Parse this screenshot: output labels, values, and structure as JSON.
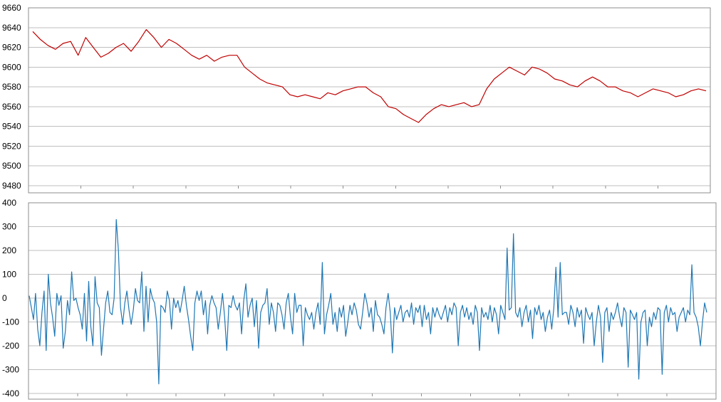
{
  "chart_data": [
    {
      "type": "line",
      "title": "",
      "xlabel": "",
      "ylabel": "",
      "ylim": [
        9480,
        9660
      ],
      "y_ticks": [
        "9660",
        "9640",
        "9620",
        "9600",
        "9580",
        "9560",
        "9540",
        "9520",
        "9500",
        "9480"
      ],
      "grid": true,
      "legend": "none",
      "series": [
        {
          "color": "#c00000",
          "values": [
            9636,
            9628,
            9622,
            9618,
            9624,
            9626,
            9612,
            9630,
            9620,
            9610,
            9614,
            9620,
            9624,
            9616,
            9626,
            9638,
            9630,
            9620,
            9628,
            9624,
            9618,
            9612,
            9608,
            9612,
            9606,
            9610,
            9612,
            9612,
            9600,
            9594,
            9588,
            9584,
            9582,
            9580,
            9572,
            9570,
            9572,
            9570,
            9568,
            9574,
            9572,
            9576,
            9578,
            9580,
            9580,
            9574,
            9570,
            9560,
            9558,
            9552,
            9548,
            9544,
            9552,
            9558,
            9562,
            9560,
            9562,
            9564,
            9560,
            9562,
            9578,
            9588,
            9594,
            9600,
            9596,
            9592,
            9600,
            9598,
            9594,
            9588,
            9586,
            9582,
            9580,
            9586,
            9590,
            9586,
            9580,
            9580,
            9576,
            9574,
            9570,
            9574,
            9578,
            9576,
            9574,
            9570,
            9572,
            9576,
            9578,
            9576
          ]
        }
      ]
    },
    {
      "type": "line",
      "title": "",
      "xlabel": "",
      "ylabel": "",
      "ylim": [
        -400,
        400
      ],
      "y_ticks": [
        "400",
        "300",
        "200",
        "100",
        "0",
        "-100",
        "-200",
        "-300",
        "-400"
      ],
      "grid": true,
      "legend": "none",
      "series": [
        {
          "color": "#1f77b4",
          "values": [
            10,
            -40,
            -90,
            20,
            -130,
            -200,
            -60,
            30,
            -220,
            100,
            -20,
            -80,
            -160,
            20,
            -30,
            10,
            -210,
            -140,
            -10,
            -70,
            110,
            -10,
            0,
            -40,
            -70,
            -130,
            20,
            -180,
            70,
            -120,
            -200,
            90,
            -20,
            -40,
            -240,
            -130,
            -20,
            30,
            -60,
            -70,
            0,
            330,
            200,
            -40,
            -110,
            -20,
            30,
            -50,
            -110,
            -50,
            40,
            -10,
            -20,
            110,
            -140,
            50,
            -100,
            40,
            0,
            -20,
            -100,
            -360,
            -30,
            -40,
            -60,
            30,
            -10,
            -130,
            0,
            -40,
            -10,
            -60,
            -10,
            50,
            -30,
            -90,
            -160,
            -220,
            -20,
            30,
            -10,
            30,
            -70,
            -10,
            -150,
            -30,
            10,
            -20,
            -40,
            -130,
            -60,
            20,
            -80,
            -220,
            -30,
            -40,
            10,
            -30,
            -50,
            -20,
            -150,
            -10,
            60,
            -80,
            -30,
            0,
            -120,
            -10,
            -210,
            -60,
            -30,
            -20,
            40,
            -110,
            -20,
            -60,
            -140,
            -20,
            -30,
            -70,
            -130,
            -20,
            20,
            -80,
            -150,
            20,
            -60,
            -30,
            -30,
            -200,
            -40,
            -70,
            -90,
            -60,
            -130,
            -60,
            -20,
            -110,
            150,
            -150,
            -70,
            -30,
            20,
            -110,
            -60,
            -140,
            -40,
            -80,
            -30,
            -160,
            -100,
            -30,
            -70,
            -20,
            -50,
            -110,
            -130,
            -60,
            20,
            -20,
            -80,
            -40,
            -140,
            -10,
            -70,
            -80,
            -110,
            -150,
            -40,
            20,
            -60,
            -230,
            -40,
            -90,
            -60,
            -30,
            -100,
            -60,
            -50,
            -80,
            -20,
            -110,
            -40,
            -60,
            -30,
            -120,
            -30,
            -90,
            -60,
            -150,
            -40,
            -80,
            -40,
            -70,
            -90,
            -60,
            -30,
            -100,
            -40,
            -70,
            -20,
            -40,
            -200,
            -60,
            -30,
            -80,
            -40,
            -90,
            -60,
            -110,
            -30,
            -60,
            -220,
            -40,
            -80,
            -60,
            -90,
            -30,
            -100,
            -40,
            -70,
            -150,
            -30,
            -60,
            -90,
            210,
            -50,
            -40,
            270,
            -60,
            -80,
            -40,
            -120,
            -60,
            -30,
            -100,
            -50,
            -170,
            -40,
            -70,
            -30,
            -90,
            -60,
            -140,
            -80,
            -50,
            -130,
            -40,
            130,
            -80,
            150,
            -70,
            -60,
            -60,
            -110,
            -30,
            -60,
            -120,
            -40,
            -80,
            -50,
            -190,
            -40,
            -70,
            -90,
            -60,
            -200,
            -100,
            -30,
            -80,
            -270,
            -60,
            -40,
            -140,
            -60,
            -90,
            -60,
            -20,
            -80,
            -120,
            -40,
            -60,
            -290,
            -50,
            -70,
            -90,
            -60,
            -340,
            -100,
            -60,
            -50,
            -200,
            -80,
            -120,
            -60,
            -90,
            -40,
            -50,
            -320,
            -60,
            -30,
            -100,
            -40,
            -70,
            -60,
            -140,
            -80,
            -60,
            -40,
            -100,
            -50,
            -70,
            140,
            -60,
            -80,
            -120,
            -200,
            -100,
            -20,
            -60
          ]
        }
      ]
    }
  ]
}
